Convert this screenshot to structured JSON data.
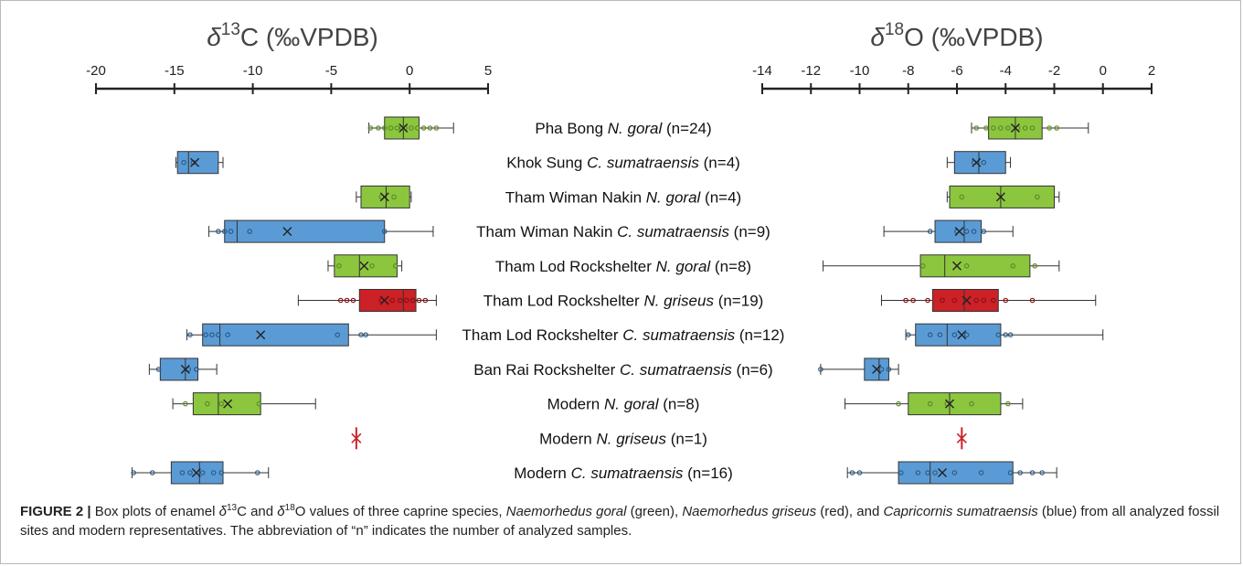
{
  "caption": {
    "figure_label": "FIGURE 2 |",
    "text_parts": [
      {
        "t": " Box plots of enamel ",
        "i": false
      },
      {
        "t": "δ",
        "i": true
      },
      {
        "t": "13",
        "sup": true
      },
      {
        "t": "C and ",
        "i": false
      },
      {
        "t": "δ",
        "i": true
      },
      {
        "t": "18",
        "sup": true
      },
      {
        "t": "O values of three caprine species, ",
        "i": false
      },
      {
        "t": "Naemorhedus goral",
        "i": true
      },
      {
        "t": " (green), ",
        "i": false
      },
      {
        "t": "Naemorhedus griseus",
        "i": true
      },
      {
        "t": " (red), and ",
        "i": false
      },
      {
        "t": "Capricornis sumatraensis",
        "i": true
      },
      {
        "t": " (blue) from all analyzed fossil sites and modern representatives. The abbreviation of “n” indicates the number of analyzed samples.",
        "i": false
      }
    ]
  },
  "colors": {
    "goral": "#8cc63f",
    "griseus": "#cc2127",
    "sumatraensis": "#5b9bd5",
    "outline": "#333333",
    "axis": "#222222",
    "point_goral": "#5e8a26",
    "point_griseus": "#8b1015",
    "point_sumatraensis": "#2c5b8a"
  },
  "chart_data": [
    {
      "type": "box",
      "axis_title_prefix": "δ",
      "axis_title_sup": "13",
      "axis_title_suffix": "C (‰VPDB)",
      "xlim": [
        -20,
        5
      ],
      "ticks": [
        -20,
        -15,
        -10,
        -5,
        0,
        5
      ],
      "categories": [
        {
          "label": "Pha Bong",
          "species": "N. goral",
          "n": "(n=24)",
          "color": "goral",
          "min": -2.6,
          "q1": -1.6,
          "median": -0.4,
          "q3": 0.6,
          "max": 2.8,
          "mean": -0.4,
          "points": [
            -2.5,
            -2.0,
            -1.6,
            -1.2,
            -0.8,
            -0.5,
            -0.3,
            0.1,
            0.5,
            0.9,
            1.3,
            1.7
          ]
        },
        {
          "label": "Khok Sung",
          "species": "C. sumatraensis",
          "n": "(n=4)",
          "color": "sumatraensis",
          "min": -14.9,
          "q1": -14.8,
          "median": -14.1,
          "q3": -12.2,
          "max": -11.9,
          "mean": -13.7,
          "points": [
            -14.4,
            -13.8
          ]
        },
        {
          "label": "Tham Wiman Nakin",
          "species": "N. goral",
          "n": "(n=4)",
          "color": "goral",
          "min": -3.4,
          "q1": -3.1,
          "median": -1.5,
          "q3": 0.0,
          "max": 0.1,
          "mean": -1.6,
          "points": [
            -1.8,
            -1.0
          ]
        },
        {
          "label": "Tham Wiman Nakin",
          "species": "C. sumatraensis",
          "n": "(n=9)",
          "color": "sumatraensis",
          "min": -12.8,
          "q1": -11.8,
          "median": -11.0,
          "q3": -1.6,
          "max": 1.5,
          "mean": -7.8,
          "points": [
            -12.2,
            -11.8,
            -11.4,
            -10.2,
            -1.6
          ]
        },
        {
          "label": "Tham Lod Rockshelter",
          "species": "N. goral",
          "n": "(n=8)",
          "color": "goral",
          "min": -5.2,
          "q1": -4.8,
          "median": -3.2,
          "q3": -0.8,
          "max": -0.5,
          "mean": -2.9,
          "points": [
            -4.5,
            -2.4,
            -0.9
          ]
        },
        {
          "label": "Tham Lod Rockshelter",
          "species": "N. griseus",
          "n": "(n=19)",
          "color": "griseus",
          "min": -7.1,
          "q1": -3.2,
          "median": -0.4,
          "q3": 0.4,
          "max": 1.7,
          "mean": -1.6,
          "points": [
            -4.4,
            -4.0,
            -3.6,
            -1.8,
            -1.1,
            -0.6,
            -0.2,
            0.2,
            0.6,
            1.0
          ]
        },
        {
          "label": "Tham Lod Rockshelter",
          "species": "C. sumatraensis",
          "n": "(n=12)",
          "color": "sumatraensis",
          "min": -14.2,
          "q1": -13.2,
          "median": -12.1,
          "q3": -3.9,
          "max": 1.7,
          "mean": -9.5,
          "points": [
            -14.0,
            -13.0,
            -12.6,
            -12.2,
            -11.6,
            -4.6,
            -3.1,
            -2.8
          ]
        },
        {
          "label": "Ban Rai Rockshelter",
          "species": "C. sumatraensis",
          "n": "(n=6)",
          "color": "sumatraensis",
          "min": -16.6,
          "q1": -15.9,
          "median": -14.3,
          "q3": -13.5,
          "max": -12.3,
          "mean": -14.3,
          "points": [
            -16.0,
            -14.1,
            -13.6
          ]
        },
        {
          "label": "Modern",
          "species": "N. goral",
          "n": "(n=8)",
          "color": "goral",
          "min": -15.1,
          "q1": -13.8,
          "median": -12.2,
          "q3": -9.5,
          "max": -6.0,
          "mean": -11.6,
          "points": [
            -14.3,
            -12.9,
            -12.0,
            -9.6
          ]
        },
        {
          "label": "Modern",
          "species": "N. griseus",
          "n": "(n=1)",
          "color": "griseus",
          "single": -3.4
        },
        {
          "label": "Modern",
          "species": "C. sumatraensis",
          "n": "(n=16)",
          "color": "sumatraensis",
          "min": -17.7,
          "q1": -15.2,
          "median": -13.4,
          "q3": -11.9,
          "max": -9.0,
          "mean": -13.6,
          "points": [
            -17.6,
            -16.4,
            -14.5,
            -14.0,
            -13.2,
            -12.5,
            -12.0,
            -9.7
          ]
        }
      ]
    },
    {
      "type": "box",
      "axis_title_prefix": "δ",
      "axis_title_sup": "18",
      "axis_title_suffix": "O (‰VPDB)",
      "xlim": [
        -14,
        2
      ],
      "ticks": [
        -14,
        -12,
        -10,
        -8,
        -6,
        -4,
        -2,
        0,
        2
      ],
      "categories": [
        {
          "label": "Pha Bong",
          "species": "N. goral",
          "n": "(n=24)",
          "color": "goral",
          "min": -5.4,
          "q1": -4.7,
          "median": -3.6,
          "q3": -2.5,
          "max": -0.6,
          "mean": -3.6,
          "points": [
            -5.2,
            -4.8,
            -4.5,
            -4.2,
            -3.9,
            -3.5,
            -3.2,
            -2.9,
            -2.2,
            -1.9
          ]
        },
        {
          "label": "Khok Sung",
          "species": "C. sumatraensis",
          "n": "(n=4)",
          "color": "sumatraensis",
          "min": -6.4,
          "q1": -6.1,
          "median": -5.1,
          "q3": -4.0,
          "max": -3.8,
          "mean": -5.2,
          "points": [
            -5.3,
            -4.9
          ]
        },
        {
          "label": "Tham Wiman Nakin",
          "species": "N. goral",
          "n": "(n=4)",
          "color": "goral",
          "min": -6.4,
          "q1": -6.3,
          "median": -4.2,
          "q3": -2.0,
          "max": -1.8,
          "mean": -4.2,
          "points": [
            -5.8,
            -2.7
          ]
        },
        {
          "label": "Tham Wiman Nakin",
          "species": "C. sumatraensis",
          "n": "(n=9)",
          "color": "sumatraensis",
          "min": -9.0,
          "q1": -6.9,
          "median": -5.7,
          "q3": -5.0,
          "max": -3.7,
          "mean": -5.9,
          "points": [
            -7.1,
            -6.0,
            -5.6,
            -5.3,
            -4.9
          ]
        },
        {
          "label": "Tham Lod Rockshelter",
          "species": "N. goral",
          "n": "(n=8)",
          "color": "goral",
          "min": -11.5,
          "q1": -7.5,
          "median": -6.5,
          "q3": -3.0,
          "max": -1.8,
          "mean": -6.0,
          "points": [
            -7.4,
            -5.6,
            -3.7,
            -2.8
          ]
        },
        {
          "label": "Tham Lod Rockshelter",
          "species": "N. griseus",
          "n": "(n=19)",
          "color": "griseus",
          "min": -9.1,
          "q1": -7.0,
          "median": -5.7,
          "q3": -4.3,
          "max": -0.3,
          "mean": -5.6,
          "points": [
            -8.1,
            -7.8,
            -7.2,
            -6.6,
            -6.1,
            -5.2,
            -4.9,
            -4.5,
            -4.0,
            -2.9
          ]
        },
        {
          "label": "Tham Lod Rockshelter",
          "species": "C. sumatraensis",
          "n": "(n=12)",
          "color": "sumatraensis",
          "min": -8.1,
          "q1": -7.7,
          "median": -6.4,
          "q3": -4.2,
          "max": 0.0,
          "mean": -5.8,
          "points": [
            -8.0,
            -7.1,
            -6.7,
            -6.1,
            -5.6,
            -4.3,
            -4.0,
            -3.8
          ]
        },
        {
          "label": "Ban Rai Rockshelter",
          "species": "C. sumatraensis",
          "n": "(n=6)",
          "color": "sumatraensis",
          "min": -11.6,
          "q1": -9.8,
          "median": -9.2,
          "q3": -8.8,
          "max": -8.4,
          "mean": -9.3,
          "points": [
            -11.6,
            -9.1,
            -8.8
          ]
        },
        {
          "label": "Modern",
          "species": "N. goral",
          "n": "(n=8)",
          "color": "goral",
          "min": -10.6,
          "q1": -8.0,
          "median": -6.3,
          "q3": -4.2,
          "max": -3.3,
          "mean": -6.3,
          "points": [
            -8.4,
            -7.1,
            -6.4,
            -5.4,
            -3.9
          ]
        },
        {
          "label": "Modern",
          "species": "N. griseus",
          "n": "(n=1)",
          "color": "griseus",
          "single": -5.8
        },
        {
          "label": "Modern",
          "species": "C. sumatraensis",
          "n": "(n=16)",
          "color": "sumatraensis",
          "min": -10.5,
          "q1": -8.4,
          "median": -7.1,
          "q3": -3.7,
          "max": -1.9,
          "mean": -6.6,
          "points": [
            -10.3,
            -10.0,
            -8.3,
            -7.6,
            -7.2,
            -6.9,
            -6.1,
            -5.0,
            -3.8,
            -3.4,
            -2.9,
            -2.5
          ]
        }
      ]
    }
  ]
}
